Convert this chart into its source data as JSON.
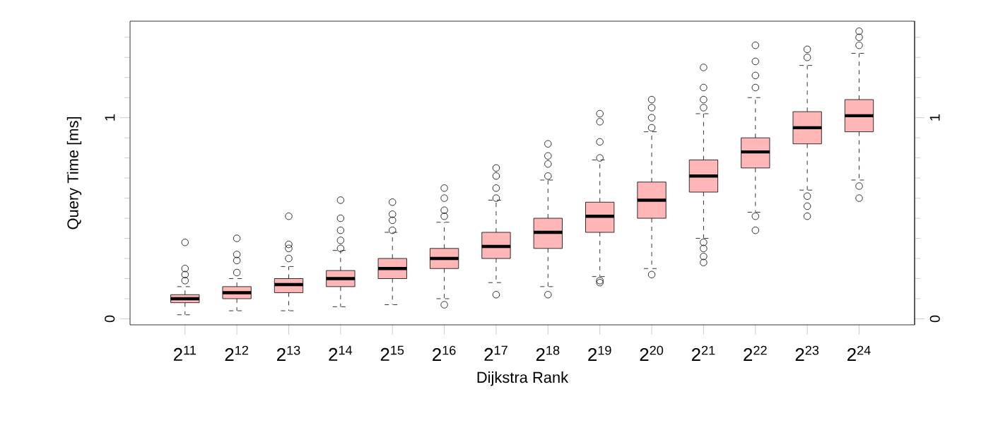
{
  "chart_data": {
    "type": "box",
    "xlabel": "Dijkstra Rank",
    "ylabel": "Query Time [ms]",
    "categories": [
      "2$^{11}$",
      "2$^{12}$",
      "2$^{13}$",
      "2$^{14}$",
      "2$^{15}$",
      "2$^{16}$",
      "2$^{17}$",
      "2$^{18}$",
      "2$^{19}$",
      "2$^{20}$",
      "2$^{21}$",
      "2$^{22}$",
      "2$^{23}$",
      "2$^{24}$"
    ],
    "color": "#ffb6b6",
    "boxes": [
      {
        "low": 0.02,
        "q1": 0.08,
        "median": 0.1,
        "q3": 0.12,
        "high": 0.16,
        "outliers": [
          0.19,
          0.22,
          0.25,
          0.38
        ]
      },
      {
        "low": 0.04,
        "q1": 0.1,
        "median": 0.13,
        "q3": 0.16,
        "high": 0.2,
        "outliers": [
          0.23,
          0.29,
          0.32,
          0.4
        ]
      },
      {
        "low": 0.04,
        "q1": 0.13,
        "median": 0.17,
        "q3": 0.2,
        "high": 0.26,
        "outliers": [
          0.3,
          0.35,
          0.37,
          0.51
        ]
      },
      {
        "low": 0.06,
        "q1": 0.16,
        "median": 0.2,
        "q3": 0.24,
        "high": 0.34,
        "outliers": [
          0.35,
          0.39,
          0.44,
          0.5,
          0.59
        ]
      },
      {
        "low": 0.07,
        "q1": 0.2,
        "median": 0.25,
        "q3": 0.3,
        "high": 0.43,
        "outliers": [
          0.44,
          0.49,
          0.52,
          0.58
        ]
      },
      {
        "low": 0.1,
        "q1": 0.25,
        "median": 0.3,
        "q3": 0.35,
        "high": 0.48,
        "outliers": [
          0.07,
          0.51,
          0.54,
          0.6,
          0.65
        ]
      },
      {
        "low": 0.18,
        "q1": 0.3,
        "median": 0.36,
        "q3": 0.43,
        "high": 0.59,
        "outliers": [
          0.12,
          0.6,
          0.65,
          0.71,
          0.75
        ]
      },
      {
        "low": 0.16,
        "q1": 0.35,
        "median": 0.43,
        "q3": 0.5,
        "high": 0.69,
        "outliers": [
          0.12,
          0.71,
          0.77,
          0.81,
          0.87
        ]
      },
      {
        "low": 0.21,
        "q1": 0.43,
        "median": 0.51,
        "q3": 0.58,
        "high": 0.79,
        "outliers": [
          0.18,
          0.19,
          0.8,
          0.88,
          0.98,
          1.02
        ]
      },
      {
        "low": 0.25,
        "q1": 0.5,
        "median": 0.59,
        "q3": 0.68,
        "high": 0.93,
        "outliers": [
          0.22,
          0.95,
          1.0,
          1.05,
          1.09
        ]
      },
      {
        "low": 0.4,
        "q1": 0.63,
        "median": 0.71,
        "q3": 0.79,
        "high": 1.02,
        "outliers": [
          0.28,
          0.31,
          0.35,
          0.38,
          1.05,
          1.09,
          1.15,
          1.25
        ]
      },
      {
        "low": 0.53,
        "q1": 0.75,
        "median": 0.83,
        "q3": 0.9,
        "high": 1.1,
        "outliers": [
          0.44,
          0.51,
          1.15,
          1.21,
          1.28,
          1.36
        ]
      },
      {
        "low": 0.64,
        "q1": 0.87,
        "median": 0.95,
        "q3": 1.03,
        "high": 1.26,
        "outliers": [
          0.51,
          0.56,
          0.61,
          1.3,
          1.34
        ]
      },
      {
        "low": 0.69,
        "q1": 0.93,
        "median": 1.01,
        "q3": 1.09,
        "high": 1.32,
        "outliers": [
          0.6,
          0.66,
          1.36,
          1.4,
          1.43
        ]
      }
    ],
    "ylim": [
      -0.03,
      1.48
    ],
    "yticks": [
      0,
      {
        "value": 0.1,
        "label": null
      },
      {
        "value": 0.2,
        "label": null
      },
      {
        "value": 0.3,
        "label": null
      },
      {
        "value": 0.4,
        "label": null
      },
      {
        "value": 0.5,
        "label": null
      },
      {
        "value": 0.6,
        "label": null
      },
      {
        "value": 0.7,
        "label": null
      },
      {
        "value": 0.8,
        "label": null
      },
      {
        "value": 0.9,
        "label": null
      },
      1,
      {
        "value": 1.1,
        "label": null
      },
      {
        "value": 1.2,
        "label": null
      },
      {
        "value": 1.3,
        "label": null
      },
      {
        "value": 1.4,
        "label": null
      }
    ],
    "y2lim": [
      -0.03,
      1.48
    ],
    "y2ticks": [
      0,
      {
        "value": 0.1,
        "label": null
      },
      {
        "value": 0.2,
        "label": null
      },
      {
        "value": 0.3,
        "label": null
      },
      {
        "value": 0.4,
        "label": null
      },
      {
        "value": 0.5,
        "label": null
      },
      {
        "value": 0.6,
        "label": null
      },
      {
        "value": 0.7,
        "label": null
      },
      {
        "value": 0.8,
        "label": null
      },
      {
        "value": 0.9,
        "label": null
      },
      1,
      {
        "value": 1.1,
        "label": null
      },
      {
        "value": 1.2,
        "label": null
      },
      {
        "value": 1.3,
        "label": null
      },
      {
        "value": 1.4,
        "label": null
      }
    ],
    "marker": "circle",
    "line_style": "dashed"
  }
}
